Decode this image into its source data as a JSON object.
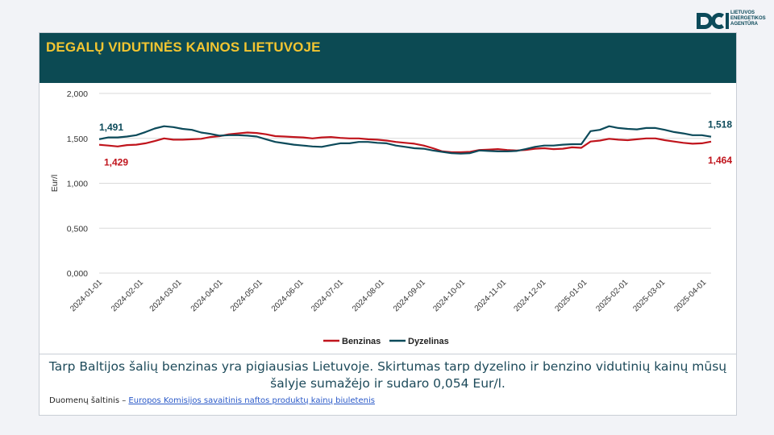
{
  "agency": {
    "name": "LIETUVOS\nENERGETIKOS\nAGENTŪRA",
    "logo_color": "#0c4a5a"
  },
  "header": {
    "title": "DEGALŲ VIDUTINĖS KAINOS LIETUVOJE",
    "bg_color": "#0c4a53",
    "title_color": "#f2c531"
  },
  "chart_data": {
    "type": "line",
    "ylabel": "Eur/l",
    "ylim": [
      0,
      2
    ],
    "yticks": [
      0,
      0.5,
      1,
      1.5,
      2
    ],
    "ytick_labels": [
      "0,000",
      "0,500",
      "1,000",
      "1,500",
      "2,000"
    ],
    "xlim": [
      "2024-01-01",
      "2025-04-07"
    ],
    "xticks": [
      "2024-01-01",
      "2024-02-01",
      "2024-03-01",
      "2024-04-01",
      "2024-05-01",
      "2024-06-01",
      "2024-07-01",
      "2024-08-01",
      "2024-09-01",
      "2024-10-01",
      "2024-11-01",
      "2024-12-01",
      "2025-01-01",
      "2025-02-01",
      "2025-03-01",
      "2025-04-01"
    ],
    "grid": "horizontal",
    "legend": "bottom-center",
    "series": [
      {
        "name": "Benzinas",
        "color": "#c0141c",
        "start_label": "1,429",
        "end_label": "1,464",
        "points": [
          [
            "2024-01-01",
            1.429
          ],
          [
            "2024-01-08",
            1.42
          ],
          [
            "2024-01-15",
            1.41
          ],
          [
            "2024-01-22",
            1.425
          ],
          [
            "2024-01-29",
            1.43
          ],
          [
            "2024-02-05",
            1.445
          ],
          [
            "2024-02-12",
            1.47
          ],
          [
            "2024-02-19",
            1.5
          ],
          [
            "2024-02-26",
            1.485
          ],
          [
            "2024-03-04",
            1.485
          ],
          [
            "2024-03-11",
            1.49
          ],
          [
            "2024-03-18",
            1.495
          ],
          [
            "2024-03-25",
            1.515
          ],
          [
            "2024-04-01",
            1.525
          ],
          [
            "2024-04-08",
            1.545
          ],
          [
            "2024-04-15",
            1.555
          ],
          [
            "2024-04-22",
            1.565
          ],
          [
            "2024-04-29",
            1.56
          ],
          [
            "2024-05-06",
            1.545
          ],
          [
            "2024-05-13",
            1.525
          ],
          [
            "2024-05-20",
            1.52
          ],
          [
            "2024-05-27",
            1.515
          ],
          [
            "2024-06-03",
            1.51
          ],
          [
            "2024-06-10",
            1.5
          ],
          [
            "2024-06-17",
            1.51
          ],
          [
            "2024-06-24",
            1.515
          ],
          [
            "2024-07-01",
            1.505
          ],
          [
            "2024-07-08",
            1.5
          ],
          [
            "2024-07-15",
            1.5
          ],
          [
            "2024-07-22",
            1.49
          ],
          [
            "2024-07-29",
            1.485
          ],
          [
            "2024-08-05",
            1.475
          ],
          [
            "2024-08-12",
            1.46
          ],
          [
            "2024-08-19",
            1.45
          ],
          [
            "2024-08-26",
            1.44
          ],
          [
            "2024-09-02",
            1.42
          ],
          [
            "2024-09-09",
            1.39
          ],
          [
            "2024-09-16",
            1.355
          ],
          [
            "2024-09-23",
            1.345
          ],
          [
            "2024-09-30",
            1.345
          ],
          [
            "2024-10-07",
            1.35
          ],
          [
            "2024-10-14",
            1.37
          ],
          [
            "2024-10-21",
            1.375
          ],
          [
            "2024-10-28",
            1.38
          ],
          [
            "2024-11-04",
            1.37
          ],
          [
            "2024-11-11",
            1.365
          ],
          [
            "2024-11-18",
            1.37
          ],
          [
            "2024-11-25",
            1.385
          ],
          [
            "2024-12-02",
            1.39
          ],
          [
            "2024-12-09",
            1.38
          ],
          [
            "2024-12-16",
            1.385
          ],
          [
            "2024-12-23",
            1.4
          ],
          [
            "2024-12-30",
            1.395
          ],
          [
            "2025-01-06",
            1.465
          ],
          [
            "2025-01-13",
            1.475
          ],
          [
            "2025-01-20",
            1.495
          ],
          [
            "2025-01-27",
            1.485
          ],
          [
            "2025-02-03",
            1.48
          ],
          [
            "2025-02-10",
            1.49
          ],
          [
            "2025-02-17",
            1.5
          ],
          [
            "2025-02-24",
            1.5
          ],
          [
            "2025-03-03",
            1.48
          ],
          [
            "2025-03-10",
            1.465
          ],
          [
            "2025-03-17",
            1.45
          ],
          [
            "2025-03-24",
            1.44
          ],
          [
            "2025-03-31",
            1.445
          ],
          [
            "2025-04-07",
            1.464
          ]
        ]
      },
      {
        "name": "Dyzelinas",
        "color": "#0c4a5a",
        "start_label": "1,491",
        "end_label": "1,518",
        "points": [
          [
            "2024-01-01",
            1.491
          ],
          [
            "2024-01-08",
            1.51
          ],
          [
            "2024-01-15",
            1.51
          ],
          [
            "2024-01-22",
            1.52
          ],
          [
            "2024-01-29",
            1.535
          ],
          [
            "2024-02-05",
            1.57
          ],
          [
            "2024-02-12",
            1.61
          ],
          [
            "2024-02-19",
            1.635
          ],
          [
            "2024-02-26",
            1.625
          ],
          [
            "2024-03-04",
            1.605
          ],
          [
            "2024-03-11",
            1.595
          ],
          [
            "2024-03-18",
            1.565
          ],
          [
            "2024-03-25",
            1.55
          ],
          [
            "2024-04-01",
            1.53
          ],
          [
            "2024-04-08",
            1.535
          ],
          [
            "2024-04-15",
            1.535
          ],
          [
            "2024-04-22",
            1.53
          ],
          [
            "2024-04-29",
            1.52
          ],
          [
            "2024-05-06",
            1.49
          ],
          [
            "2024-05-13",
            1.46
          ],
          [
            "2024-05-20",
            1.445
          ],
          [
            "2024-05-27",
            1.43
          ],
          [
            "2024-06-03",
            1.42
          ],
          [
            "2024-06-10",
            1.41
          ],
          [
            "2024-06-17",
            1.405
          ],
          [
            "2024-06-24",
            1.425
          ],
          [
            "2024-07-01",
            1.445
          ],
          [
            "2024-07-08",
            1.445
          ],
          [
            "2024-07-15",
            1.46
          ],
          [
            "2024-07-22",
            1.46
          ],
          [
            "2024-07-29",
            1.45
          ],
          [
            "2024-08-05",
            1.445
          ],
          [
            "2024-08-12",
            1.42
          ],
          [
            "2024-08-19",
            1.405
          ],
          [
            "2024-08-26",
            1.39
          ],
          [
            "2024-09-02",
            1.385
          ],
          [
            "2024-09-09",
            1.365
          ],
          [
            "2024-09-16",
            1.35
          ],
          [
            "2024-09-23",
            1.335
          ],
          [
            "2024-09-30",
            1.33
          ],
          [
            "2024-10-07",
            1.335
          ],
          [
            "2024-10-14",
            1.365
          ],
          [
            "2024-10-21",
            1.36
          ],
          [
            "2024-10-28",
            1.355
          ],
          [
            "2024-11-04",
            1.355
          ],
          [
            "2024-11-11",
            1.36
          ],
          [
            "2024-11-18",
            1.38
          ],
          [
            "2024-11-25",
            1.405
          ],
          [
            "2024-12-02",
            1.42
          ],
          [
            "2024-12-09",
            1.42
          ],
          [
            "2024-12-16",
            1.43
          ],
          [
            "2024-12-23",
            1.435
          ],
          [
            "2024-12-30",
            1.435
          ],
          [
            "2025-01-06",
            1.58
          ],
          [
            "2025-01-13",
            1.595
          ],
          [
            "2025-01-20",
            1.635
          ],
          [
            "2025-01-27",
            1.615
          ],
          [
            "2025-02-03",
            1.605
          ],
          [
            "2025-02-10",
            1.6
          ],
          [
            "2025-02-17",
            1.615
          ],
          [
            "2025-02-24",
            1.615
          ],
          [
            "2025-03-03",
            1.595
          ],
          [
            "2025-03-10",
            1.57
          ],
          [
            "2025-03-17",
            1.555
          ],
          [
            "2025-03-24",
            1.535
          ],
          [
            "2025-03-31",
            1.535
          ],
          [
            "2025-04-07",
            1.518
          ]
        ]
      }
    ]
  },
  "note": "Tarp Baltijos šalių benzinas yra pigiausias Lietuvoje. Skirtumas tarp dyzelino ir benzino vidutinių kainų mūsų šalyje sumažėjo ir sudaro 0,054 Eur/l.",
  "source": {
    "label": "Duomenų šaltinis –",
    "link_text": "Europos Komisijos savaitinis naftos produktų kainų biuletenis"
  }
}
